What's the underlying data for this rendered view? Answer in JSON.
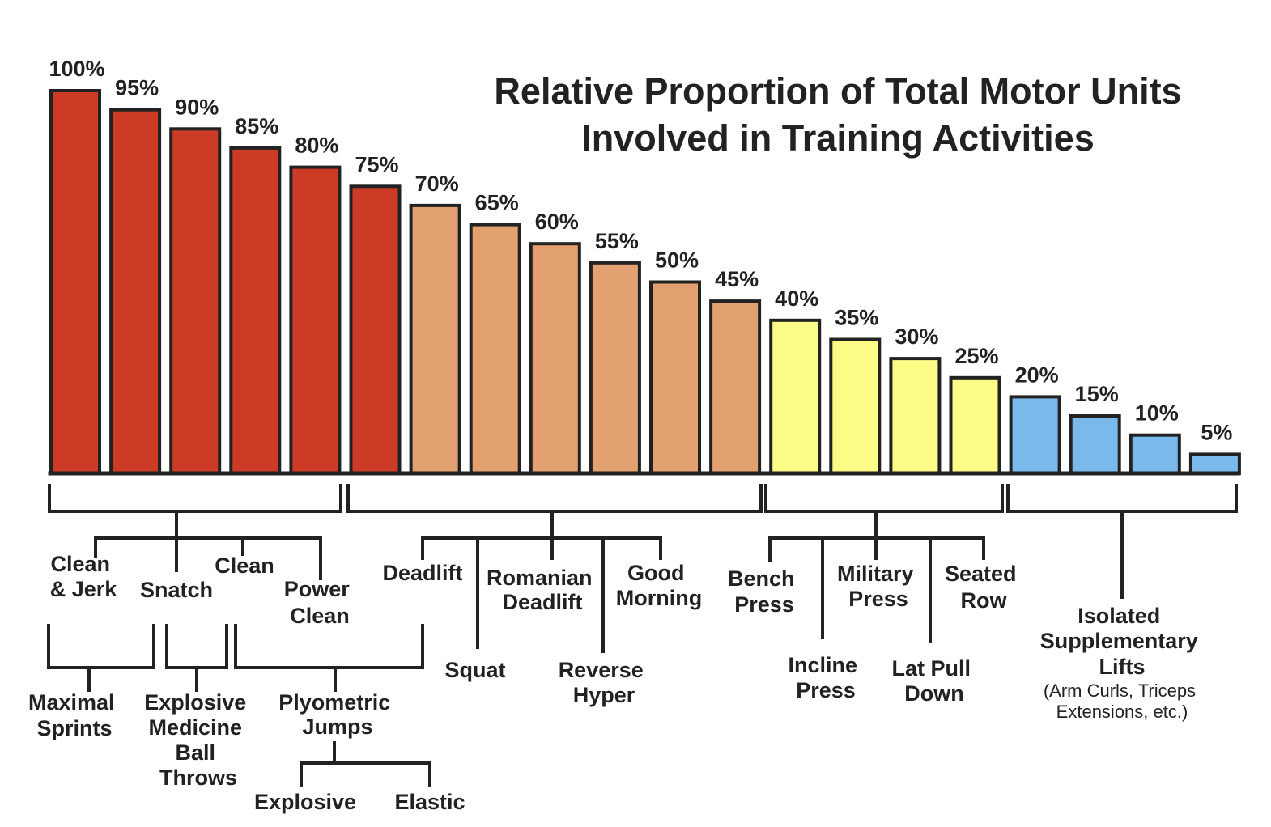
{
  "chart_data": {
    "type": "bar",
    "title": [
      "Relative Proportion of Total Motor Units",
      "Involved in Training Activities"
    ],
    "xlabel": "",
    "ylabel": "",
    "ylim": [
      0,
      100
    ],
    "grid": false,
    "values": [
      100,
      95,
      90,
      85,
      80,
      75,
      70,
      65,
      60,
      55,
      50,
      45,
      40,
      35,
      30,
      25,
      20,
      15,
      10,
      5
    ],
    "value_labels": [
      "100%",
      "95%",
      "90%",
      "85%",
      "80%",
      "75%",
      "70%",
      "65%",
      "60%",
      "55%",
      "50%",
      "45%",
      "40%",
      "35%",
      "30%",
      "25%",
      "20%",
      "15%",
      "10%",
      "5%"
    ],
    "groups": [
      {
        "name": "red",
        "color": "#cc3b26",
        "bars": 6
      },
      {
        "name": "tan",
        "color": "#e3a070",
        "bars": 6
      },
      {
        "name": "yellow",
        "color": "#fcfb86",
        "bars": 4
      },
      {
        "name": "blue",
        "color": "#79b9ec",
        "bars": 4
      }
    ],
    "activities": {
      "clean_jerk": [
        "Clean",
        "& Jerk"
      ],
      "snatch": [
        "Snatch"
      ],
      "clean": [
        "Clean"
      ],
      "power_clean": [
        "Power",
        "Clean"
      ],
      "maximal_sprints": [
        "Maximal",
        "Sprints"
      ],
      "explosive_medicine_ball_throws": [
        "Explosive",
        "Medicine",
        "Ball",
        "Throws"
      ],
      "plyometric_jumps": [
        "Plyometric",
        "Jumps"
      ],
      "explosive": [
        "Explosive"
      ],
      "elastic": [
        "Elastic"
      ],
      "deadlift": [
        "Deadlift"
      ],
      "squat": [
        "Squat"
      ],
      "romanian_deadlift": [
        "Romanian",
        "Deadlift"
      ],
      "reverse_hyper": [
        "Reverse",
        "Hyper"
      ],
      "good_morning": [
        "Good",
        "Morning"
      ],
      "bench_press": [
        "Bench",
        "Press"
      ],
      "incline_press": [
        "Incline",
        "Press"
      ],
      "military_press": [
        "Military",
        "Press"
      ],
      "lat_pull_down": [
        "Lat Pull",
        "Down"
      ],
      "seated_row": [
        "Seated",
        "Row"
      ],
      "isolated_supplementary_lifts": [
        "Isolated",
        "Supplementary",
        "Lifts"
      ],
      "isolated_examples": [
        "(Arm Curls, Triceps",
        "Extensions, etc.)"
      ]
    }
  }
}
